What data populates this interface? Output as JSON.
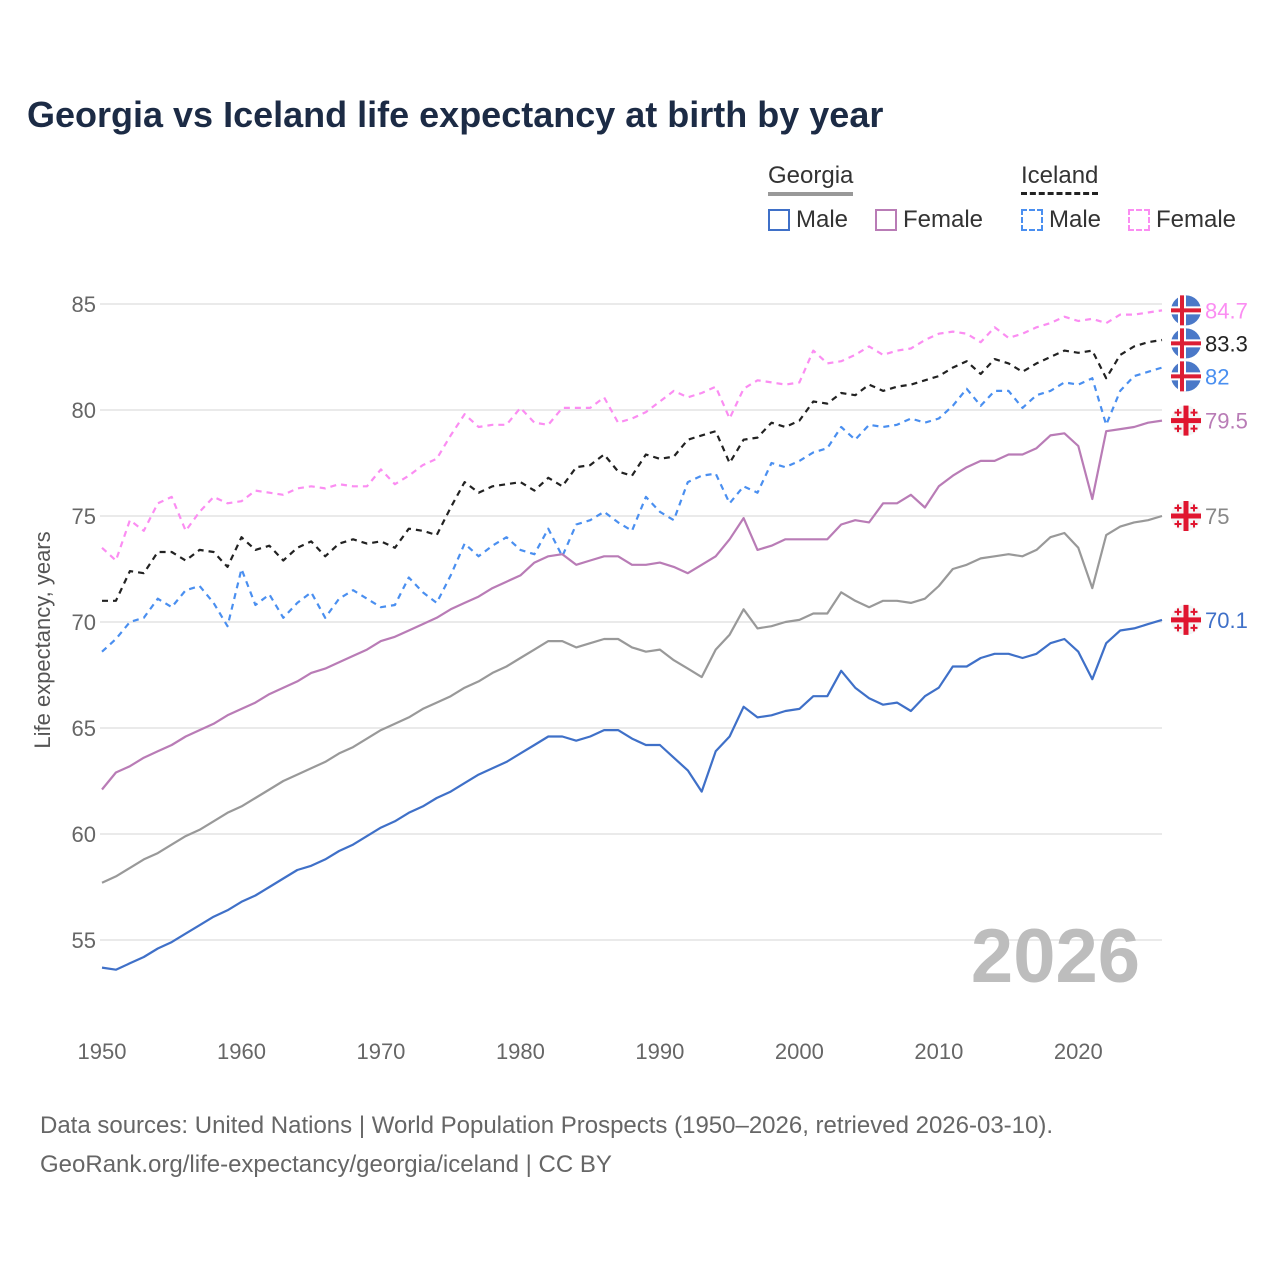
{
  "title": "Georgia vs Iceland life expectancy at birth by year",
  "legend": {
    "groups": [
      {
        "label": "Georgia",
        "items": [
          "Male",
          "Female"
        ]
      },
      {
        "label": "Iceland",
        "items": [
          "Male",
          "Female"
        ]
      }
    ]
  },
  "footer": {
    "line1": "Data sources: United Nations | World Population Prospects (1950–2026, retrieved 2026-03-10).",
    "line2": "GeoRank.org/life-expectancy/georgia/iceland | CC BY"
  },
  "chart_data": {
    "type": "line",
    "title": "Georgia vs Iceland life expectancy at birth by year",
    "xlabel": "",
    "ylabel": "Life expectancy, years",
    "xlim": [
      1950,
      2026
    ],
    "ylim": [
      52.5,
      87
    ],
    "grid": true,
    "x_ticks": [
      "1950",
      "1960",
      "1970",
      "1980",
      "1990",
      "2000",
      "2010",
      "2020"
    ],
    "y_ticks": [
      "55",
      "60",
      "65",
      "70",
      "75",
      "80",
      "85"
    ],
    "year_label": "2026",
    "x_start": 1950,
    "series": [
      {
        "name": "Iceland Female",
        "color": "#fb8df2",
        "dash": "6,5",
        "flag": "iceland",
        "end_label": "84.7",
        "values": [
          73.5,
          72.9,
          74.8,
          74.3,
          75.6,
          75.9,
          74.3,
          75.2,
          75.9,
          75.6,
          75.7,
          76.2,
          76.1,
          76.0,
          76.3,
          76.4,
          76.3,
          76.5,
          76.4,
          76.4,
          77.2,
          76.5,
          76.9,
          77.4,
          77.7,
          78.8,
          79.8,
          79.2,
          79.3,
          79.3,
          80.1,
          79.4,
          79.3,
          80.1,
          80.1,
          80.1,
          80.6,
          79.4,
          79.6,
          79.9,
          80.4,
          80.9,
          80.6,
          80.8,
          81.1,
          79.6,
          81.0,
          81.4,
          81.3,
          81.2,
          81.3,
          82.8,
          82.2,
          82.3,
          82.6,
          83.0,
          82.6,
          82.8,
          82.9,
          83.3,
          83.6,
          83.7,
          83.6,
          83.2,
          83.9,
          83.4,
          83.6,
          83.9,
          84.1,
          84.4,
          84.2,
          84.3,
          84.1,
          84.5,
          84.5,
          84.6,
          84.7
        ]
      },
      {
        "name": "Iceland",
        "color": "#222222",
        "dash": "6,5",
        "flag": "iceland",
        "end_label": "83.3",
        "values": [
          71.0,
          71.0,
          72.4,
          72.3,
          73.3,
          73.3,
          72.9,
          73.4,
          73.3,
          72.6,
          74.0,
          73.4,
          73.6,
          72.9,
          73.5,
          73.8,
          73.1,
          73.7,
          73.9,
          73.7,
          73.8,
          73.5,
          74.4,
          74.3,
          74.1,
          75.4,
          76.6,
          76.1,
          76.4,
          76.5,
          76.6,
          76.2,
          76.8,
          76.4,
          77.3,
          77.4,
          77.9,
          77.1,
          76.9,
          77.9,
          77.7,
          77.8,
          78.6,
          78.8,
          79.0,
          77.5,
          78.6,
          78.7,
          79.4,
          79.2,
          79.5,
          80.4,
          80.3,
          80.8,
          80.7,
          81.2,
          80.9,
          81.1,
          81.2,
          81.4,
          81.6,
          82.0,
          82.3,
          81.7,
          82.4,
          82.2,
          81.8,
          82.2,
          82.5,
          82.8,
          82.7,
          82.8,
          81.5,
          82.6,
          83.0,
          83.2,
          83.3
        ]
      },
      {
        "name": "Iceland Male",
        "color": "#4a8ff0",
        "dash": "6,5",
        "flag": "iceland",
        "end_label": "82",
        "values": [
          68.6,
          69.2,
          70.0,
          70.2,
          71.1,
          70.7,
          71.5,
          71.7,
          70.9,
          69.8,
          72.5,
          70.8,
          71.3,
          70.2,
          70.9,
          71.4,
          70.2,
          71.1,
          71.5,
          71.1,
          70.7,
          70.8,
          72.1,
          71.4,
          70.9,
          72.2,
          73.7,
          73.1,
          73.6,
          74.0,
          73.4,
          73.2,
          74.4,
          73.1,
          74.6,
          74.8,
          75.2,
          74.7,
          74.3,
          75.9,
          75.2,
          74.8,
          76.6,
          76.9,
          77.0,
          75.6,
          76.4,
          76.1,
          77.5,
          77.3,
          77.6,
          78.0,
          78.2,
          79.2,
          78.6,
          79.3,
          79.2,
          79.3,
          79.6,
          79.4,
          79.6,
          80.2,
          81.0,
          80.2,
          80.9,
          80.9,
          80.1,
          80.7,
          80.9,
          81.3,
          81.2,
          81.5,
          79.3,
          80.9,
          81.6,
          81.8,
          82.0
        ]
      },
      {
        "name": "Georgia Female",
        "color": "#b97cb6",
        "dash": "",
        "flag": "georgia",
        "end_label": "79.5",
        "values": [
          62.1,
          62.9,
          63.2,
          63.6,
          63.9,
          64.2,
          64.6,
          64.9,
          65.2,
          65.6,
          65.9,
          66.2,
          66.6,
          66.9,
          67.2,
          67.6,
          67.8,
          68.1,
          68.4,
          68.7,
          69.1,
          69.3,
          69.6,
          69.9,
          70.2,
          70.6,
          70.9,
          71.2,
          71.6,
          71.9,
          72.2,
          72.8,
          73.1,
          73.2,
          72.7,
          72.9,
          73.1,
          73.1,
          72.7,
          72.7,
          72.8,
          72.6,
          72.3,
          72.7,
          73.1,
          73.9,
          74.9,
          73.4,
          73.6,
          73.9,
          73.9,
          73.9,
          73.9,
          74.6,
          74.8,
          74.7,
          75.6,
          75.6,
          76.0,
          75.4,
          76.4,
          76.9,
          77.3,
          77.6,
          77.6,
          77.9,
          77.9,
          78.2,
          78.8,
          78.9,
          78.3,
          75.8,
          79.0,
          79.1,
          79.2,
          79.4,
          79.5
        ]
      },
      {
        "name": "Georgia",
        "color": "#999999",
        "dash": "",
        "flag": "georgia",
        "end_label": "75",
        "values": [
          57.7,
          58.0,
          58.4,
          58.8,
          59.1,
          59.5,
          59.9,
          60.2,
          60.6,
          61.0,
          61.3,
          61.7,
          62.1,
          62.5,
          62.8,
          63.1,
          63.4,
          63.8,
          64.1,
          64.5,
          64.9,
          65.2,
          65.5,
          65.9,
          66.2,
          66.5,
          66.9,
          67.2,
          67.6,
          67.9,
          68.3,
          68.7,
          69.1,
          69.1,
          68.8,
          69.0,
          69.2,
          69.2,
          68.8,
          68.6,
          68.7,
          68.2,
          67.8,
          67.4,
          68.7,
          69.4,
          70.6,
          69.7,
          69.8,
          70.0,
          70.1,
          70.4,
          70.4,
          71.4,
          71.0,
          70.7,
          71.0,
          71.0,
          70.9,
          71.1,
          71.7,
          72.5,
          72.7,
          73.0,
          73.1,
          73.2,
          73.1,
          73.4,
          74.0,
          74.2,
          73.5,
          71.6,
          74.1,
          74.5,
          74.7,
          74.8,
          75.0
        ]
      },
      {
        "name": "Georgia Male",
        "color": "#3f70c8",
        "dash": "",
        "flag": "georgia",
        "end_label": "70.1",
        "values": [
          53.7,
          53.6,
          53.9,
          54.2,
          54.6,
          54.9,
          55.3,
          55.7,
          56.1,
          56.4,
          56.8,
          57.1,
          57.5,
          57.9,
          58.3,
          58.5,
          58.8,
          59.2,
          59.5,
          59.9,
          60.3,
          60.6,
          61.0,
          61.3,
          61.7,
          62.0,
          62.4,
          62.8,
          63.1,
          63.4,
          63.8,
          64.2,
          64.6,
          64.6,
          64.4,
          64.6,
          64.9,
          64.9,
          64.5,
          64.2,
          64.2,
          63.6,
          63.0,
          62.0,
          63.9,
          64.6,
          66.0,
          65.5,
          65.6,
          65.8,
          65.9,
          66.5,
          66.5,
          67.7,
          66.9,
          66.4,
          66.1,
          66.2,
          65.8,
          66.5,
          66.9,
          67.9,
          67.9,
          68.3,
          68.5,
          68.5,
          68.3,
          68.5,
          69.0,
          69.2,
          68.6,
          67.3,
          69.0,
          69.6,
          69.7,
          69.9,
          70.1
        ]
      }
    ]
  }
}
